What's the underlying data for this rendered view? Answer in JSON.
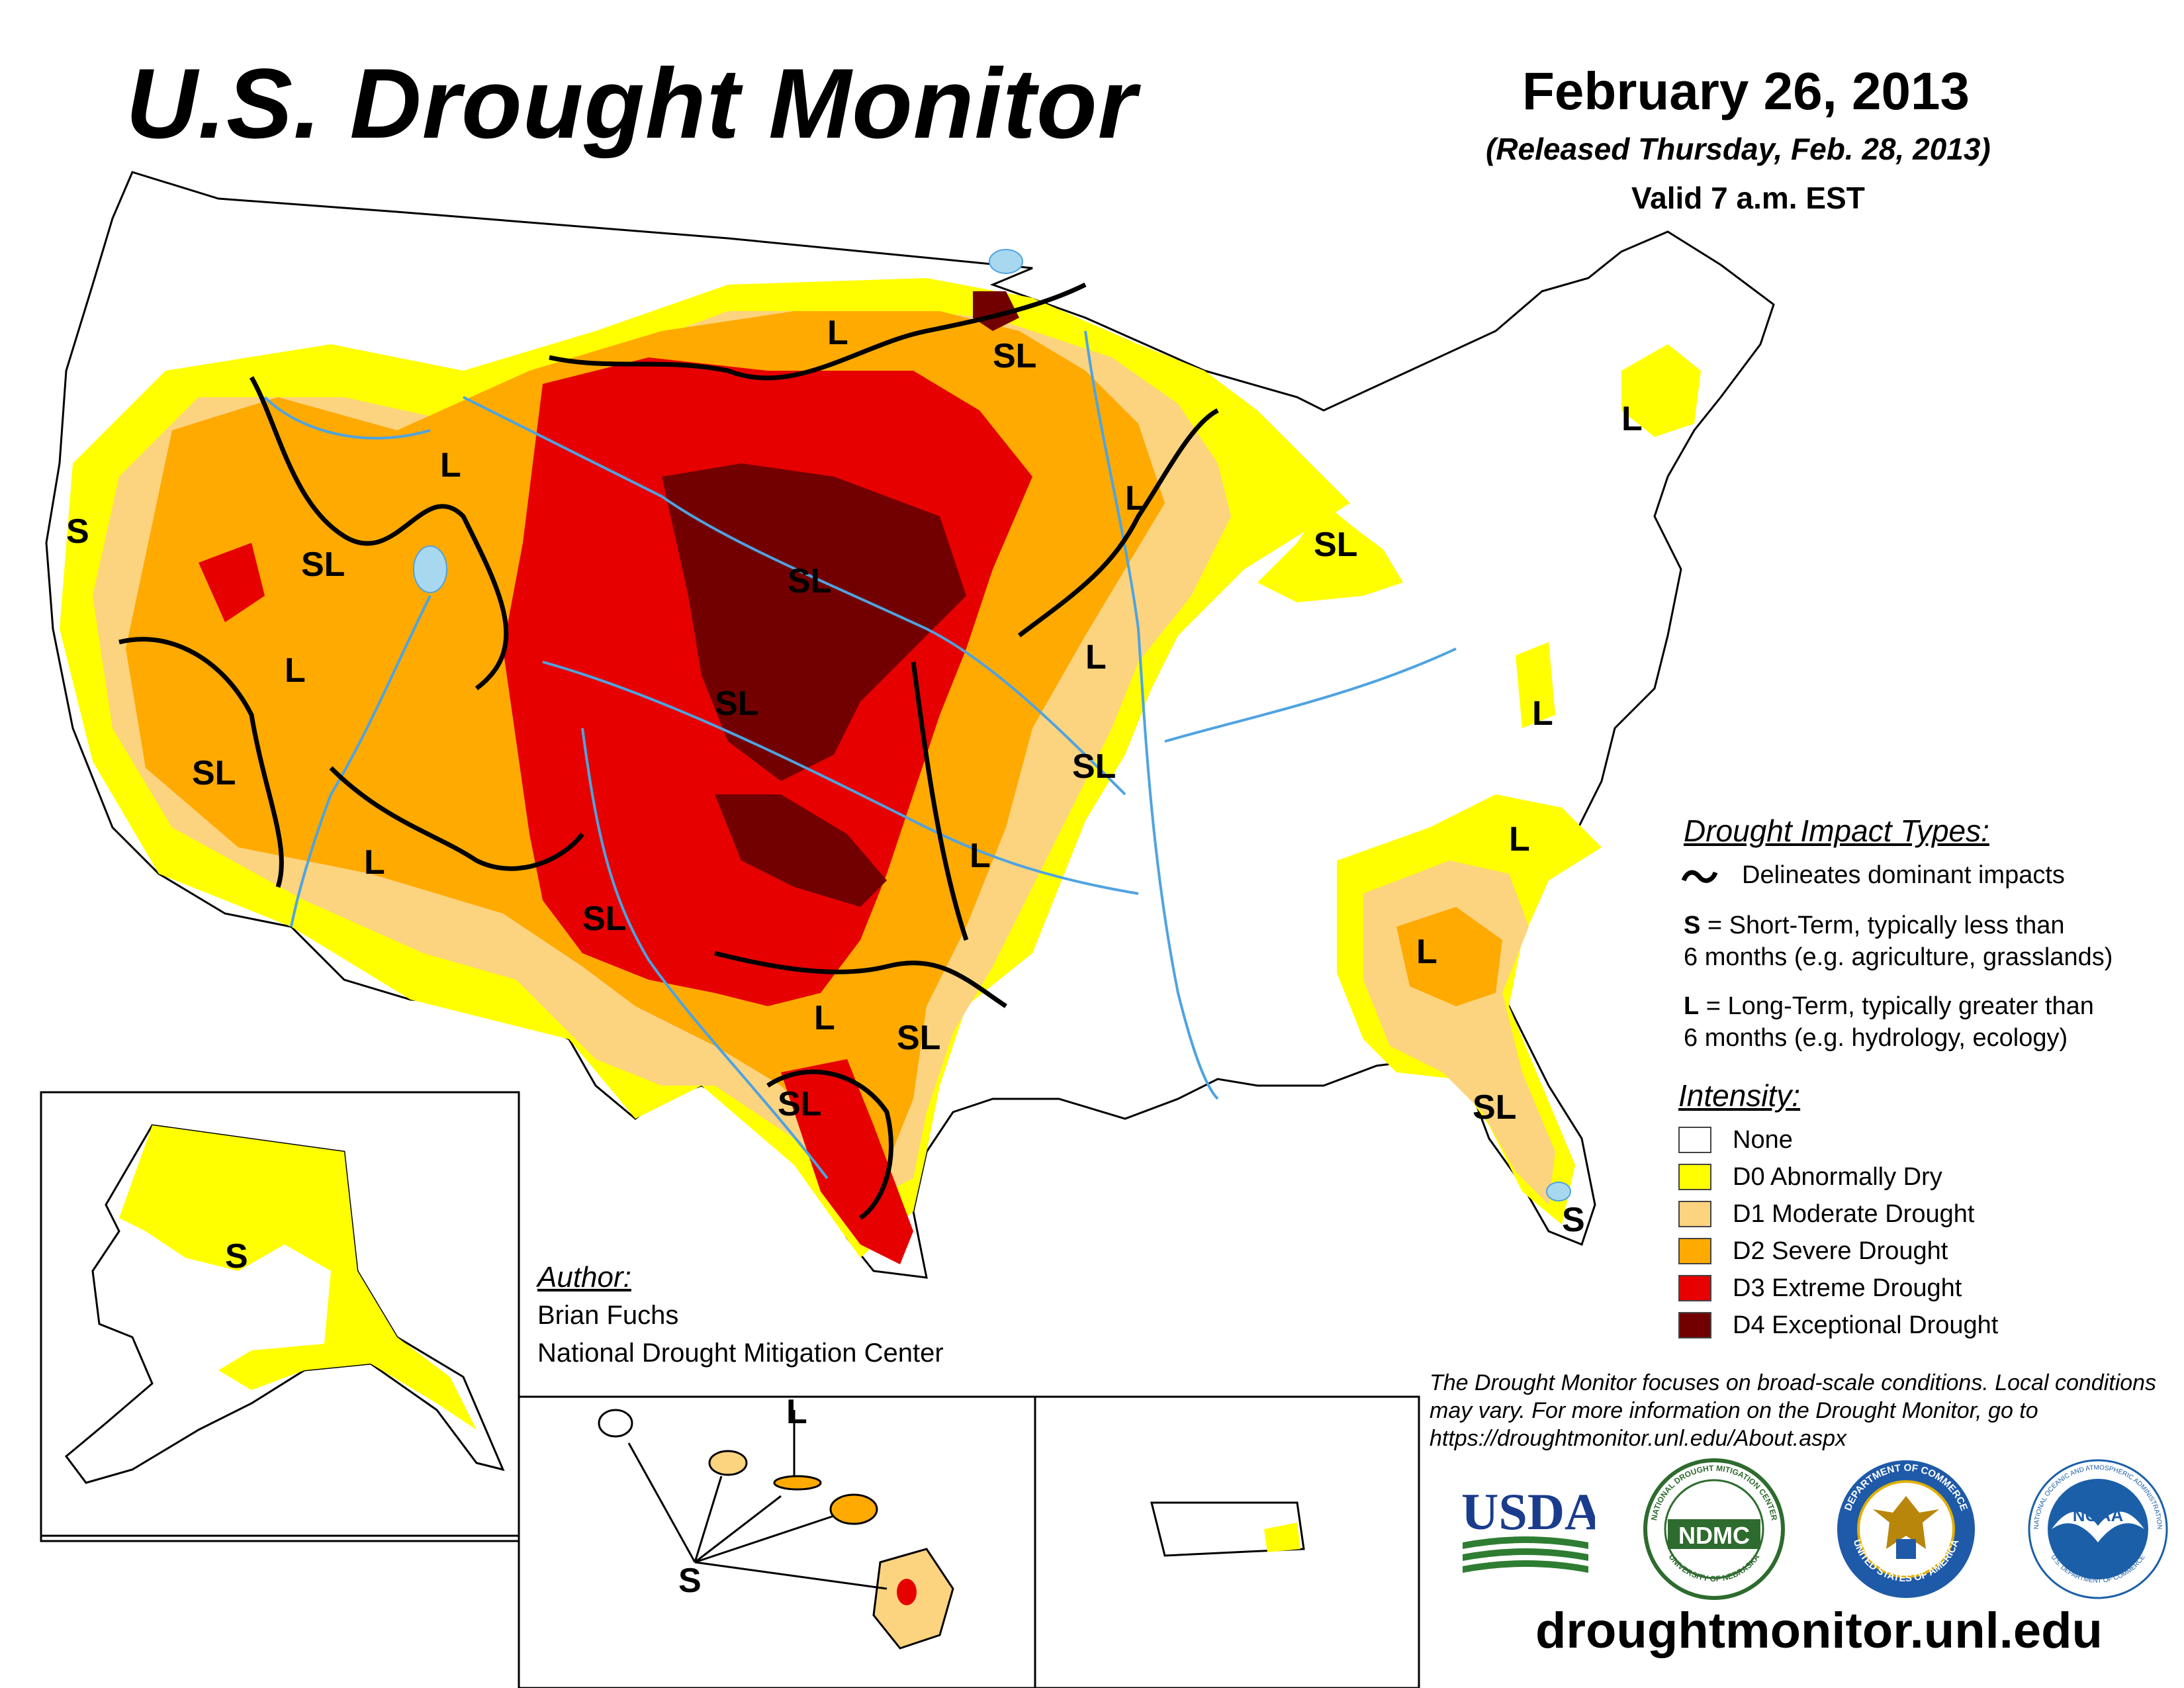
{
  "header": {
    "title": "U.S. Drought Monitor",
    "date": "February 26, 2013",
    "released": "(Released Thursday, Feb. 28, 2013)",
    "valid": "Valid 7 a.m. EST"
  },
  "impact_legend": {
    "heading": "Drought Impact Types:",
    "delineates": "Delineates dominant impacts",
    "short_term_code": "S",
    "short_term_line1": "= Short-Term, typically less than",
    "short_term_line2": "6 months (e.g. agriculture, grasslands)",
    "long_term_code": "L",
    "long_term_line1": "= Long-Term, typically greater than",
    "long_term_line2": "6 months (e.g. hydrology, ecology)"
  },
  "intensity_legend": {
    "heading": "Intensity:",
    "items": [
      {
        "label": "None",
        "color": "#ffffff"
      },
      {
        "label": "D0 Abnormally Dry",
        "color": "#ffff00"
      },
      {
        "label": "D1 Moderate Drought",
        "color": "#fcd37f"
      },
      {
        "label": "D2 Severe Drought",
        "color": "#ffaa00"
      },
      {
        "label": "D3 Extreme Drought",
        "color": "#e60000"
      },
      {
        "label": "D4 Exceptional Drought",
        "color": "#730000"
      }
    ]
  },
  "author": {
    "heading": "Author:",
    "name": "Brian Fuchs",
    "organization": "National Drought Mitigation Center"
  },
  "disclaimer": "The Drought Monitor focuses on broad-scale conditions. Local conditions may vary. For more information on the Drought Monitor, go to https://droughtmonitor.unl.edu/About.aspx",
  "website": "droughtmonitor.unl.edu",
  "logos": {
    "usda": "USDA",
    "ndmc": "NDMC",
    "ndmc_ring": "NATIONAL DROUGHT MITIGATION CENTER",
    "ndmc_ring_bottom": "UNIVERSITY OF NEBRASKA",
    "commerce_ring": "DEPARTMENT OF COMMERCE",
    "commerce_ring_bottom": "UNITED STATES OF AMERICA",
    "noaa": "NOAA",
    "noaa_ring": "NATIONAL OCEANIC AND ATMOSPHERIC ADMINISTRATION",
    "noaa_ring_bottom": "U.S. DEPARTMENT OF COMMERCE"
  },
  "map_labels": {
    "conus": [
      "S",
      "SL",
      "L",
      "SL",
      "L",
      "SL",
      "SL",
      "L",
      "SL",
      "SL",
      "L",
      "SL",
      "L",
      "L",
      "L",
      "SL",
      "SL",
      "L",
      "SL",
      "L",
      "L",
      "L",
      "SL",
      "S",
      "L"
    ],
    "alaska": "S",
    "hawaii_s": "S",
    "hawaii_l": "L"
  },
  "colors": {
    "d0": "#ffff00",
    "d1": "#fcd37f",
    "d2": "#ffaa00",
    "d3": "#e60000",
    "d4": "#730000",
    "water": "#4fa3e0",
    "lake": "#a8d8f0",
    "usda_blue": "#1a3c8c",
    "usda_green": "#2e7d32",
    "ndmc_green": "#2e6b2e",
    "commerce_blue": "#1e5aa8",
    "noaa_blue": "#1b5fa8"
  }
}
